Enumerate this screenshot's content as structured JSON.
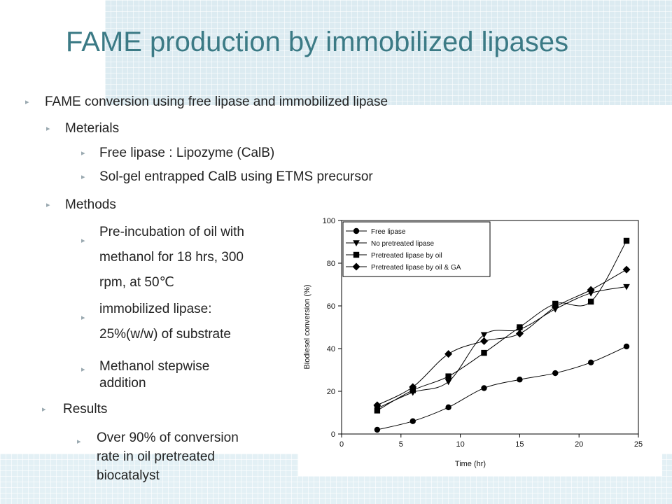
{
  "slide": {
    "title": "FAME production by immobilized lipases",
    "bullets": {
      "b1": "FAME conversion using free lipase and immobilized lipase",
      "b2": "Meterials",
      "b3": "Free lipase  :  Lipozyme (CalB)",
      "b4": "Sol-gel entrapped CalB  using ETMS precursor",
      "b5": "Methods",
      "b6_line1": "Pre-incubation of oil with",
      "b6_line2": "methanol for 18 hrs, 300",
      "b6_line3": "rpm, at 50℃",
      "b7_line1": "immobilized lipase:",
      "b7_line2": "25%(w/w) of substrate",
      "b8_line1": "Methanol stepwise",
      "b8_line2": "addition",
      "b9": "Results",
      "b10_line1": "Over 90% of conversion",
      "b10_line2": "rate in oil pretreated",
      "b10_line3": "biocatalyst"
    }
  },
  "chart_data": {
    "type": "line",
    "xlabel": "Time (hr)",
    "ylabel": "Biodiesel conversion (%)",
    "xlim": [
      0,
      25
    ],
    "ylim": [
      0,
      100
    ],
    "xticks": [
      0,
      5,
      10,
      15,
      20,
      25
    ],
    "yticks": [
      0,
      20,
      40,
      60,
      80,
      100
    ],
    "grid": false,
    "legend_position": "top-left",
    "x": [
      3,
      6,
      9,
      12,
      15,
      18,
      21,
      24
    ],
    "series": [
      {
        "name": "Free lipase",
        "marker": "circle",
        "values": [
          2,
          6,
          12.5,
          21.5,
          25.5,
          28.5,
          33.5,
          41
        ]
      },
      {
        "name": "No pretreated lipase",
        "marker": "triangle-down",
        "values": [
          12,
          19.5,
          24.5,
          46.5,
          49,
          58.5,
          66,
          69
        ]
      },
      {
        "name": "Pretreated lipase by oil",
        "marker": "square",
        "values": [
          11,
          20.5,
          27,
          38,
          50,
          61,
          62,
          90.5
        ]
      },
      {
        "name": "Pretreated lipase by oil & GA",
        "marker": "diamond",
        "values": [
          13.5,
          22,
          37.5,
          43.5,
          47,
          59.5,
          67.5,
          77
        ]
      }
    ]
  }
}
